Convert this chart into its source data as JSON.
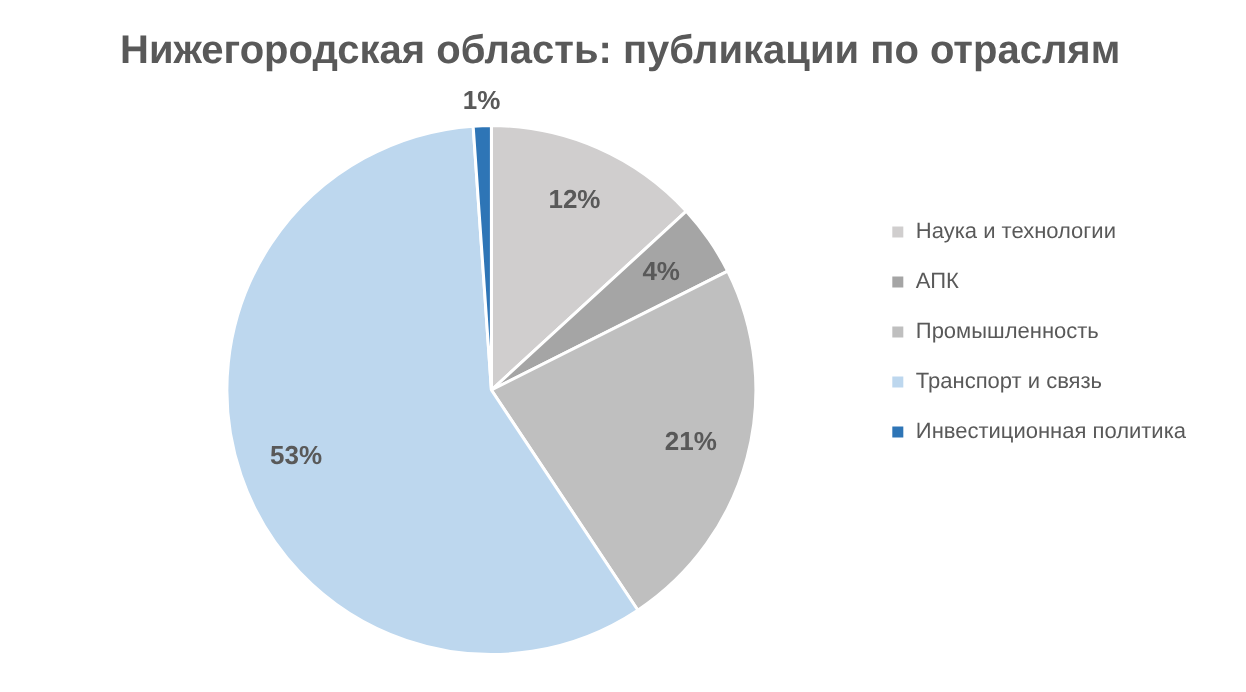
{
  "chart_data": {
    "type": "pie",
    "title": "Нижегородская область: публикации по отраслям",
    "categories": [
      "Наука и технологии",
      "АПК",
      "Промышленность",
      "Транспорт и связь",
      "Инвестиционная политика"
    ],
    "values": [
      12,
      4,
      21,
      53,
      1
    ],
    "colors": [
      "#d0cece",
      "#a5a5a5",
      "#bfbfbf",
      "#bdd7ee",
      "#2e75b6"
    ],
    "value_labels": [
      "12%",
      "4%",
      "21%",
      "53%",
      "1%"
    ],
    "legend": "right"
  }
}
